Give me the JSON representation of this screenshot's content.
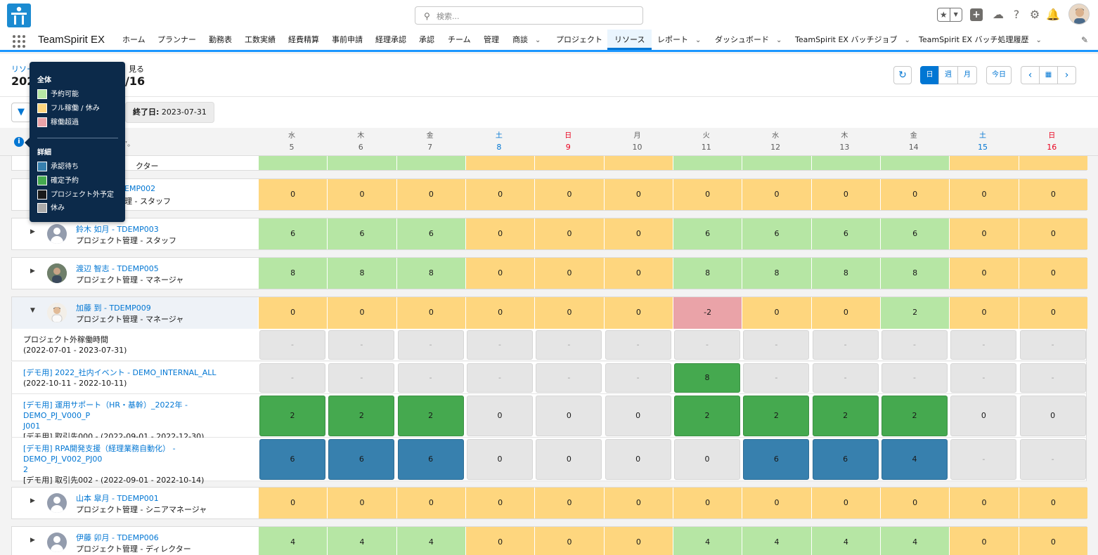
{
  "header": {
    "search_placeholder": "検索...",
    "colors": {
      "brand": "#0176d3",
      "available": "#b6e6a4",
      "full": "#fed67e",
      "over": "#eaa3a8",
      "confirmed": "#45a94f",
      "pending": "#3780ae"
    }
  },
  "nav": {
    "app_name": "TeamSpirit EX",
    "items": [
      {
        "label": "ホーム"
      },
      {
        "label": "プランナー"
      },
      {
        "label": "勤務表"
      },
      {
        "label": "工数実績"
      },
      {
        "label": "経費精算"
      },
      {
        "label": "事前申請"
      },
      {
        "label": "経理承認"
      },
      {
        "label": "承認"
      },
      {
        "label": "チーム"
      },
      {
        "label": "管理"
      },
      {
        "label": "商談"
      },
      {
        "label": "プロジェクト"
      },
      {
        "label": "リソース"
      },
      {
        "label": "レポート"
      },
      {
        "label": "ダッシュボード"
      },
      {
        "label": "TeamSpirit EX バッチジョブ"
      },
      {
        "label": "TeamSpirit EX バッチ処理履歴"
      }
    ]
  },
  "page": {
    "breadcrumb_start": "リソー",
    "breadcrumb_end": "見る",
    "date_start": "202",
    "date_end": "/16",
    "refresh_icon": "refresh-icon",
    "view_day": "日",
    "view_week": "週",
    "view_month": "月",
    "today": "今日",
    "end_date_label": "終了日:",
    "end_date_value": "2023-07-31"
  },
  "days": [
    {
      "wd": "水",
      "d": "5",
      "type": "weekday"
    },
    {
      "wd": "木",
      "d": "6",
      "type": "weekday"
    },
    {
      "wd": "金",
      "d": "7",
      "type": "weekday"
    },
    {
      "wd": "土",
      "d": "8",
      "type": "sat"
    },
    {
      "wd": "日",
      "d": "9",
      "type": "sun"
    },
    {
      "wd": "月",
      "d": "10",
      "type": "weekday"
    },
    {
      "wd": "火",
      "d": "11",
      "type": "weekday"
    },
    {
      "wd": "水",
      "d": "12",
      "type": "weekday"
    },
    {
      "wd": "木",
      "d": "13",
      "type": "weekday"
    },
    {
      "wd": "金",
      "d": "14",
      "type": "weekday"
    },
    {
      "wd": "土",
      "d": "15",
      "type": "sat"
    },
    {
      "wd": "日",
      "d": "16",
      "type": "sun"
    }
  ],
  "partial_row": {
    "role": "クター",
    "header_fragment": "”。",
    "cells": [
      "g",
      "g",
      "g",
      "y",
      "y",
      "y",
      "g",
      "g",
      "g",
      "g",
      "y",
      "y"
    ]
  },
  "resources": [
    {
      "name": "EMP002",
      "role": "理 - スタッフ",
      "avatar": "default",
      "values": [
        "0",
        "0",
        "0",
        "0",
        "0",
        "0",
        "0",
        "0",
        "0",
        "0",
        "0",
        "0"
      ],
      "colors": [
        "y",
        "y",
        "y",
        "y",
        "y",
        "y",
        "y",
        "y",
        "y",
        "y",
        "y",
        "y"
      ]
    },
    {
      "name": "鈴木 如月 - TDEMP003",
      "role": "プロジェクト管理 - スタッフ",
      "avatar": "default",
      "values": [
        "6",
        "6",
        "6",
        "0",
        "0",
        "0",
        "6",
        "6",
        "6",
        "6",
        "0",
        "0"
      ],
      "colors": [
        "g",
        "g",
        "g",
        "y",
        "y",
        "y",
        "g",
        "g",
        "g",
        "g",
        "y",
        "y"
      ]
    },
    {
      "name": "渡辺 智志 - TDEMP005",
      "role": "プロジェクト管理 - マネージャ",
      "avatar": "photo1",
      "values": [
        "8",
        "8",
        "8",
        "0",
        "0",
        "0",
        "8",
        "8",
        "8",
        "8",
        "0",
        "0"
      ],
      "colors": [
        "g",
        "g",
        "g",
        "y",
        "y",
        "y",
        "g",
        "g",
        "g",
        "g",
        "y",
        "y"
      ]
    },
    {
      "name": "加藤 到 - TDEMP009",
      "role": "プロジェクト管理 - マネージャ",
      "avatar": "photo2",
      "values": [
        "0",
        "0",
        "0",
        "0",
        "0",
        "0",
        "-2",
        "0",
        "0",
        "2",
        "0",
        "0"
      ],
      "colors": [
        "y",
        "y",
        "y",
        "y",
        "y",
        "y",
        "r",
        "y",
        "y",
        "g",
        "y",
        "y"
      ]
    }
  ],
  "projects": [
    {
      "name": "",
      "line1": "プロジェクト外稼働時間",
      "line2": "(2022-07-01 - 2023-07-31)",
      "values": [
        "-",
        "-",
        "-",
        "-",
        "-",
        "-",
        "-",
        "-",
        "-",
        "-",
        "-",
        "-"
      ],
      "kinds": [
        "n",
        "n",
        "n",
        "n",
        "n",
        "n",
        "n",
        "n",
        "n",
        "n",
        "n",
        "n"
      ]
    },
    {
      "name": "[デモ用] 2022_社内イベント - DEMO_INTERNAL_ALL",
      "line2": "(2022-10-11 - 2022-10-11)",
      "values": [
        "-",
        "-",
        "-",
        "-",
        "-",
        "-",
        "8",
        "-",
        "-",
        "-",
        "-",
        "-"
      ],
      "kinds": [
        "n",
        "n",
        "n",
        "n",
        "n",
        "n",
        "ok",
        "n",
        "n",
        "n",
        "n",
        "n"
      ]
    },
    {
      "name": "[デモ用] 運用サポート（HR・基幹）_2022年 - DEMO_PJ_V000_P",
      "name2": "J001",
      "line2": "[デモ用] 取引先000 - (2022-09-01 - 2022-12-30)",
      "values": [
        "2",
        "2",
        "2",
        "0",
        "0",
        "0",
        "2",
        "2",
        "2",
        "2",
        "0",
        "0"
      ],
      "kinds": [
        "ok",
        "ok",
        "ok",
        "n",
        "n",
        "n",
        "ok",
        "ok",
        "ok",
        "ok",
        "n",
        "n"
      ]
    },
    {
      "name": "[デモ用] RPA開発支援（経理業務自動化） - DEMO_PJ_V002_PJ00",
      "name2": "2",
      "line2": "[デモ用] 取引先002 - (2022-09-01 - 2022-10-14)",
      "values": [
        "6",
        "6",
        "6",
        "0",
        "0",
        "0",
        "0",
        "6",
        "6",
        "4",
        "-",
        "-"
      ],
      "kinds": [
        "pend",
        "pend",
        "pend",
        "n",
        "n",
        "n",
        "n",
        "pend",
        "pend",
        "pend",
        "n",
        "n"
      ]
    }
  ],
  "more_resources": [
    {
      "name": "山本 皐月 - TDEMP001",
      "role": "プロジェクト管理 - シニアマネージャ",
      "values": [
        "0",
        "0",
        "0",
        "0",
        "0",
        "0",
        "0",
        "0",
        "0",
        "0",
        "0",
        "0"
      ],
      "colors": [
        "y",
        "y",
        "y",
        "y",
        "y",
        "y",
        "y",
        "y",
        "y",
        "y",
        "y",
        "y"
      ]
    },
    {
      "name": "伊藤 卯月 - TDEMP006",
      "role": "プロジェクト管理 - ディレクター",
      "values": [
        "4",
        "4",
        "4",
        "0",
        "0",
        "0",
        "4",
        "4",
        "4",
        "4",
        "0",
        "0"
      ],
      "colors": [
        "g",
        "g",
        "g",
        "y",
        "y",
        "y",
        "g",
        "g",
        "g",
        "g",
        "y",
        "y"
      ]
    }
  ],
  "legend": {
    "overall_title": "全体",
    "overall": [
      {
        "label": "予約可能",
        "color": "#b6e6a4"
      },
      {
        "label": "フル稼働 / 休み",
        "color": "#fed67e"
      },
      {
        "label": "稼働超過",
        "color": "#eaa3a8"
      }
    ],
    "detail_title": "詳細",
    "detail": [
      {
        "label": "承認待ち",
        "color": "#3780ae"
      },
      {
        "label": "確定予約",
        "color": "#45a94f"
      },
      {
        "label": "プロジェクト外予定",
        "color": "#1a1a1a"
      },
      {
        "label": "休み",
        "color": "#aaaaaa"
      }
    ]
  }
}
